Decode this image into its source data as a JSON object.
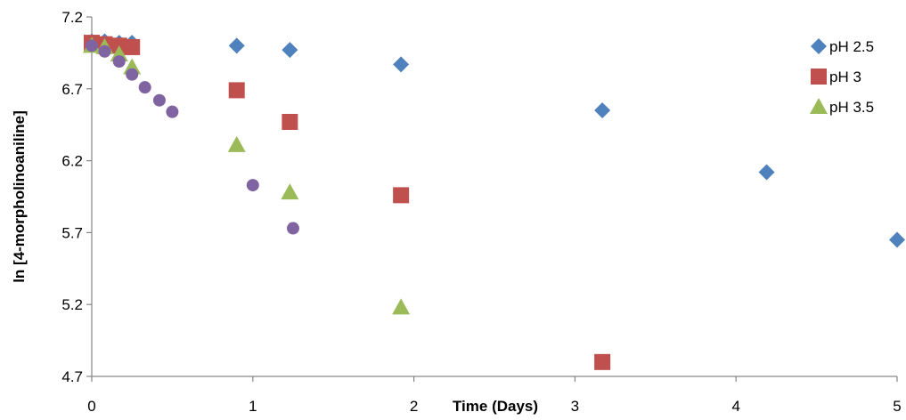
{
  "chart_data": {
    "type": "scatter",
    "title": "",
    "xlabel": "Time (Days)",
    "ylabel": "ln [4-morpholinoaniline]",
    "xlim": [
      0,
      5
    ],
    "ylim": [
      4.7,
      7.2
    ],
    "x_ticks": [
      "0",
      "1",
      "2",
      "3",
      "4",
      "5"
    ],
    "y_ticks": [
      "4.7",
      "5.2",
      "5.7",
      "6.2",
      "6.7",
      "7.2"
    ],
    "grid": false,
    "legend_position": "top-right",
    "series": [
      {
        "name": "pH 2.5",
        "marker": "diamond",
        "color": "#4F81BD",
        "x": [
          0,
          0.08,
          0.17,
          0.25,
          0.9,
          1.23,
          1.92,
          3.17,
          4.19,
          5.0
        ],
        "y": [
          7.03,
          7.03,
          7.02,
          7.02,
          7.0,
          6.97,
          6.87,
          6.55,
          6.12,
          5.65
        ]
      },
      {
        "name": "pH 3",
        "marker": "square",
        "color": "#C0504D",
        "x": [
          0,
          0.08,
          0.17,
          0.25,
          0.9,
          1.23,
          1.92,
          3.17
        ],
        "y": [
          7.02,
          7.01,
          7.0,
          6.99,
          6.69,
          6.47,
          5.96,
          4.8
        ]
      },
      {
        "name": "pH 3.5",
        "marker": "triangle",
        "color": "#9BBB59",
        "x": [
          0,
          0.08,
          0.17,
          0.25,
          0.9,
          1.23,
          1.92
        ],
        "y": [
          7.0,
          6.99,
          6.94,
          6.85,
          6.31,
          5.98,
          5.18
        ]
      },
      {
        "name": "",
        "marker": "circle",
        "color": "#8064A2",
        "x": [
          0,
          0.08,
          0.17,
          0.25,
          0.33,
          0.42,
          0.5,
          1.0,
          1.25
        ],
        "y": [
          7.0,
          6.96,
          6.89,
          6.8,
          6.71,
          6.62,
          6.54,
          6.03,
          5.73
        ]
      }
    ]
  }
}
